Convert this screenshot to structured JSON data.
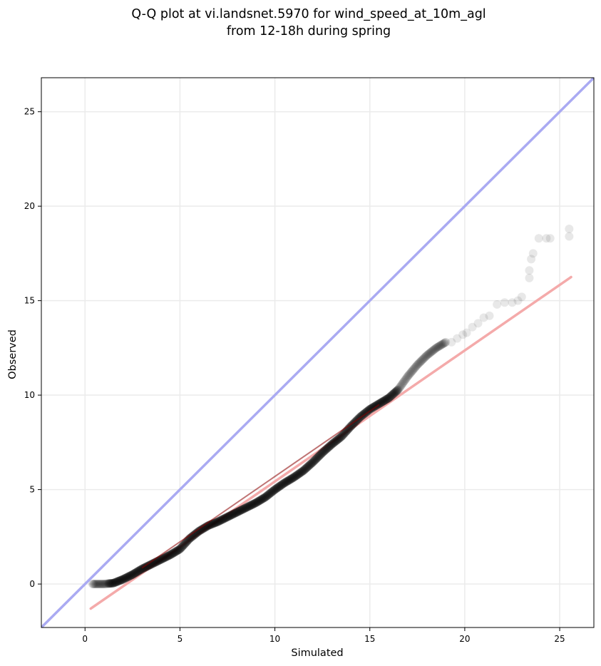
{
  "chart_data": {
    "type": "scatter",
    "title": [
      "Q-Q plot at vi.landsnet.5970 for wind_speed_at_10m_agl",
      "from 12-18h during spring"
    ],
    "xlabel": "Simulated",
    "ylabel": "Observed",
    "xlim": [
      -2.3,
      26.8
    ],
    "ylim": [
      -2.3,
      26.8
    ],
    "xticks": [
      0,
      5,
      10,
      15,
      20,
      25
    ],
    "yticks": [
      0,
      5,
      10,
      15,
      20,
      25
    ],
    "grid": true,
    "legend": "none",
    "colors": {
      "points": "#000000",
      "identity_line": "#aaaaf2",
      "fit_line": "#f4aaaa",
      "inner_fit_line": "#8b0000",
      "grid": "#ebebeb"
    },
    "curve_anchors": [
      [
        0.4,
        0.0
      ],
      [
        1.0,
        0.0
      ],
      [
        1.5,
        0.05
      ],
      [
        2.0,
        0.25
      ],
      [
        2.5,
        0.5
      ],
      [
        3.0,
        0.8
      ],
      [
        3.5,
        1.05
      ],
      [
        4.0,
        1.3
      ],
      [
        4.5,
        1.55
      ],
      [
        5.0,
        1.85
      ],
      [
        5.5,
        2.4
      ],
      [
        6.0,
        2.8
      ],
      [
        6.5,
        3.1
      ],
      [
        7.0,
        3.3
      ],
      [
        7.5,
        3.55
      ],
      [
        8.0,
        3.8
      ],
      [
        8.5,
        4.05
      ],
      [
        9.0,
        4.3
      ],
      [
        9.5,
        4.6
      ],
      [
        10.0,
        5.0
      ],
      [
        10.5,
        5.35
      ],
      [
        11.0,
        5.65
      ],
      [
        11.5,
        6.0
      ],
      [
        12.0,
        6.45
      ],
      [
        12.5,
        6.95
      ],
      [
        13.0,
        7.4
      ],
      [
        13.5,
        7.8
      ],
      [
        14.0,
        8.35
      ],
      [
        14.5,
        8.85
      ],
      [
        15.0,
        9.25
      ],
      [
        15.5,
        9.55
      ],
      [
        16.0,
        9.85
      ],
      [
        16.5,
        10.3
      ],
      [
        17.0,
        11.0
      ],
      [
        17.5,
        11.6
      ],
      [
        18.0,
        12.1
      ],
      [
        18.5,
        12.5
      ],
      [
        19.0,
        12.8
      ]
    ],
    "tail_points": [
      [
        19.3,
        12.8
      ],
      [
        19.6,
        13.0
      ],
      [
        19.9,
        13.2
      ],
      [
        20.1,
        13.3
      ],
      [
        20.4,
        13.6
      ],
      [
        20.7,
        13.8
      ],
      [
        21.0,
        14.1
      ],
      [
        21.3,
        14.2
      ],
      [
        21.7,
        14.8
      ],
      [
        22.1,
        14.9
      ],
      [
        22.5,
        14.9
      ],
      [
        22.8,
        15.0
      ],
      [
        23.0,
        15.2
      ],
      [
        23.4,
        16.2
      ],
      [
        23.4,
        16.6
      ],
      [
        23.5,
        17.2
      ],
      [
        23.6,
        17.5
      ],
      [
        23.9,
        18.3
      ],
      [
        24.3,
        18.3
      ],
      [
        24.5,
        18.3
      ],
      [
        25.5,
        18.4
      ],
      [
        25.5,
        18.8
      ]
    ],
    "fit_line": {
      "x": [
        0.3,
        25.6
      ],
      "y": [
        -1.3,
        16.25
      ]
    },
    "inner_fit_line": {
      "x": [
        3.0,
        15.5
      ],
      "y": [
        0.85,
        9.5
      ]
    },
    "identity_line": {
      "x": [
        -2.3,
        26.8
      ],
      "y": [
        -2.3,
        26.8
      ]
    }
  }
}
